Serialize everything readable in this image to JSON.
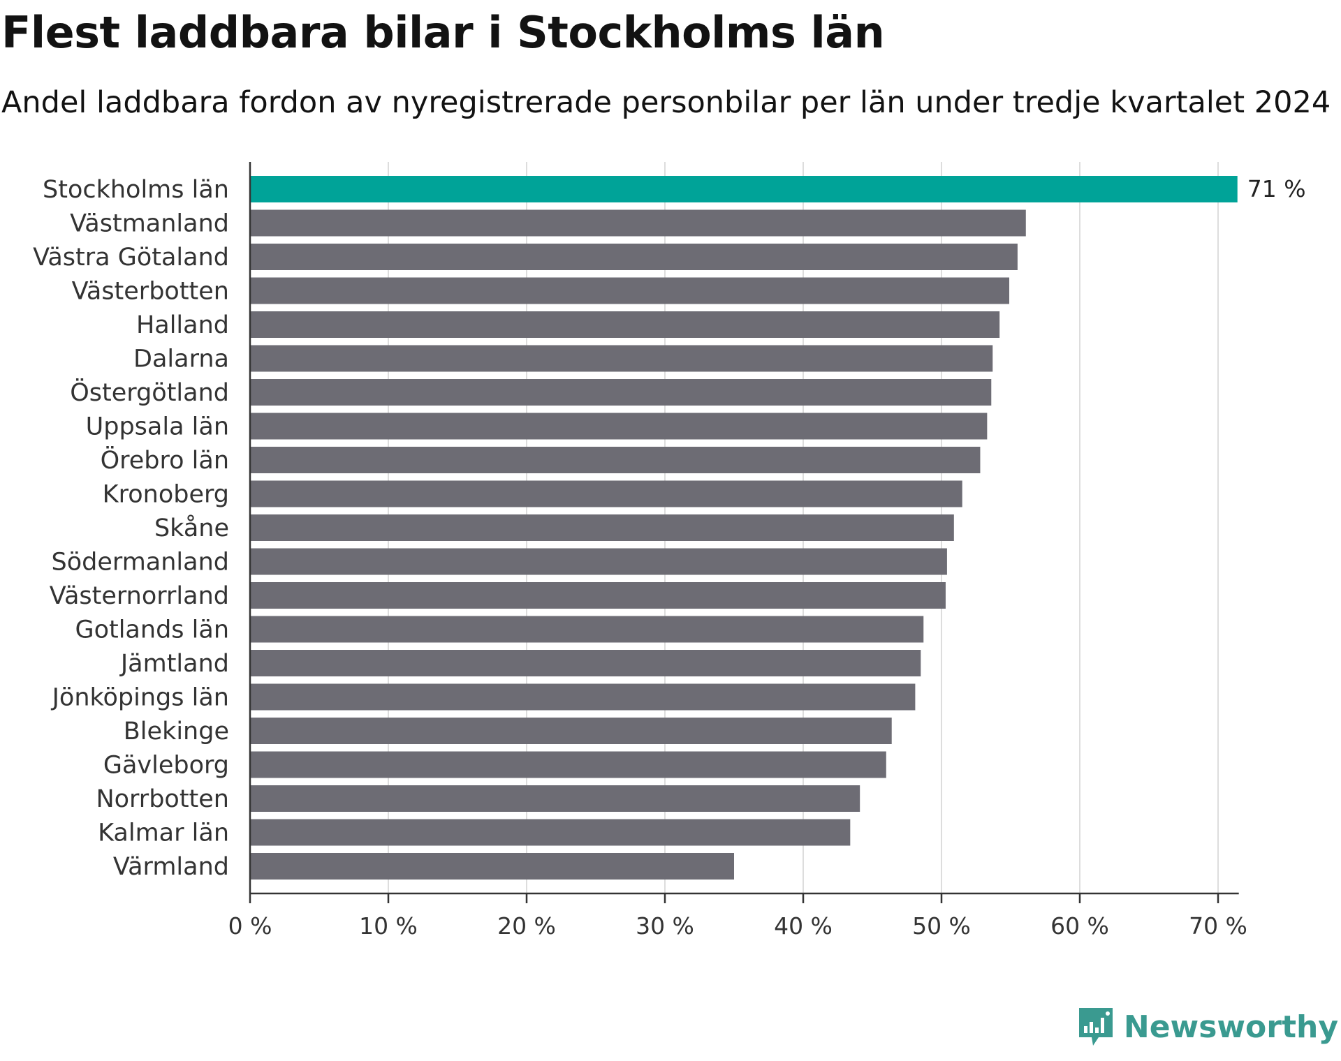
{
  "header": {
    "title": "Flest laddbara bilar i Stockholms län",
    "subtitle": "Andel laddbara fordon av nyregistrerade personbilar per län under tredje kvartalet 2024"
  },
  "brand": {
    "name": "Newsworthy",
    "icon": "newsworthy-logo-icon"
  },
  "colors": {
    "highlight": "#00a398",
    "bar": "#6d6c74",
    "grid": "#dddddd",
    "axis": "#333333",
    "brand": "#3a9a90"
  },
  "chart_data": {
    "type": "bar",
    "orientation": "horizontal",
    "title": "Flest laddbara bilar i Stockholms län",
    "subtitle": "Andel laddbara fordon av nyregistrerade personbilar per län under tredje kvartalet 2024",
    "xlabel": "",
    "ylabel": "",
    "xlim": [
      0,
      71.5
    ],
    "ticks": [
      0,
      10,
      20,
      30,
      40,
      50,
      60,
      70
    ],
    "tick_labels": [
      "0 %",
      "10 %",
      "20 %",
      "30 %",
      "40 %",
      "50 %",
      "60 %",
      "70 %"
    ],
    "grid": true,
    "categories": [
      "Stockholms län",
      "Västmanland",
      "Västra Götaland",
      "Västerbotten",
      "Halland",
      "Dalarna",
      "Östergötland",
      "Uppsala län",
      "Örebro län",
      "Kronoberg",
      "Skåne",
      "Södermanland",
      "Västernorrland",
      "Gotlands län",
      "Jämtland",
      "Jönköpings län",
      "Blekinge",
      "Gävleborg",
      "Norrbotten",
      "Kalmar län",
      "Värmland"
    ],
    "values": [
      71.4,
      56.1,
      55.5,
      54.9,
      54.2,
      53.7,
      53.6,
      53.3,
      52.8,
      51.5,
      50.9,
      50.4,
      50.3,
      48.7,
      48.5,
      48.1,
      46.4,
      46.0,
      44.1,
      43.4,
      35.0
    ],
    "highlight_index": 0,
    "data_labels": [
      {
        "index": 0,
        "text": "71 %"
      }
    ]
  }
}
